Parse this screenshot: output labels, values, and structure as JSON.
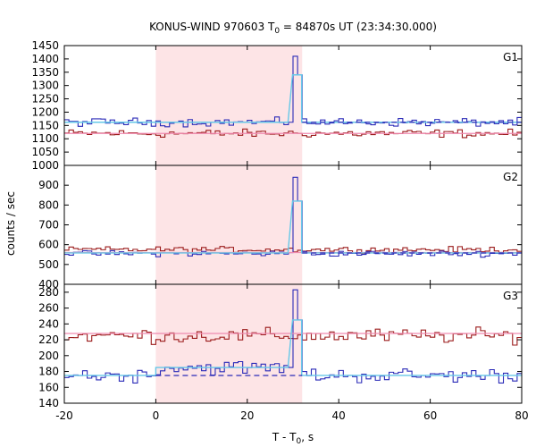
{
  "chart_data": {
    "type": "line",
    "title_prefix": "KONUS-WIND 970603 T",
    "title_sub": "0",
    "title_suffix": " = 84870s UT (23:34:30.000)",
    "xlabel_prefix": "T - T",
    "xlabel_sub": "0",
    "xlabel_suffix": ", s",
    "ylabel": "counts / sec",
    "xlim": [
      -20,
      80
    ],
    "x_ticks": [
      -20,
      0,
      20,
      40,
      60,
      80
    ],
    "highlight_interval": [
      0,
      32
    ],
    "colors": {
      "series_red": "#9b1b1b",
      "series_blue": "#2b2bb8",
      "fit_red": "#f08ab0",
      "fit_blue": "#66c8e8",
      "bg_line": "#2b2bb8",
      "highlight": "#fde4e6"
    },
    "panels": [
      {
        "label": "G1",
        "ylim": [
          1000,
          1450
        ],
        "y_ticks": [
          1000,
          1050,
          1100,
          1150,
          1200,
          1250,
          1300,
          1350,
          1400,
          1450
        ],
        "red_mean": 1120,
        "blue_mean": 1162,
        "blue_burst": [
          [
            28.9,
            1162
          ],
          [
            29.9,
            1410
          ],
          [
            30.9,
            1340
          ],
          [
            31.9,
            1175
          ],
          [
            32.9,
            1162
          ]
        ],
        "blue_fit": [
          [
            -20,
            1162
          ],
          [
            28.9,
            1162
          ],
          [
            29.9,
            1340
          ],
          [
            31.9,
            1340
          ],
          [
            31.9,
            1162
          ],
          [
            80,
            1162
          ]
        ],
        "red_fit": [
          [
            -20,
            1120
          ],
          [
            80,
            1120
          ]
        ],
        "bg_dashed": [
          [
            32,
            1162
          ],
          [
            80,
            1162
          ]
        ]
      },
      {
        "label": "G2",
        "ylim": [
          400,
          1000
        ],
        "y_ticks": [
          400,
          500,
          600,
          700,
          800,
          900
        ],
        "red_mean": 575,
        "blue_mean": 555,
        "blue_burst": [
          [
            28.9,
            560
          ],
          [
            29.9,
            940
          ],
          [
            30.9,
            820
          ],
          [
            31.9,
            565
          ],
          [
            32.9,
            555
          ]
        ],
        "blue_fit": [
          [
            -20,
            558
          ],
          [
            28.9,
            558
          ],
          [
            29.9,
            820
          ],
          [
            31.9,
            820
          ],
          [
            31.9,
            558
          ],
          [
            80,
            558
          ]
        ],
        "red_fit": [
          [
            -20,
            560
          ],
          [
            80,
            560
          ]
        ],
        "bg_dashed": [
          [
            32,
            558
          ],
          [
            80,
            558
          ]
        ]
      },
      {
        "label": "G3",
        "ylim": [
          140,
          290
        ],
        "y_ticks": [
          140,
          160,
          180,
          200,
          220,
          240,
          260,
          280
        ],
        "red_mean": 225,
        "blue_mean": 175,
        "blue_burst": [
          [
            28.9,
            185
          ],
          [
            29.9,
            283
          ],
          [
            30.9,
            245
          ],
          [
            31.9,
            180
          ],
          [
            32.9,
            175
          ]
        ],
        "blue_fit": [
          [
            -20,
            175
          ],
          [
            0,
            175
          ],
          [
            0,
            185
          ],
          [
            28.9,
            185
          ],
          [
            29.9,
            245
          ],
          [
            31.9,
            245
          ],
          [
            31.9,
            175
          ],
          [
            80,
            175
          ]
        ],
        "red_fit": [
          [
            -20,
            228
          ],
          [
            80,
            228
          ]
        ],
        "bg_dashed": [
          [
            0,
            175
          ],
          [
            32,
            175
          ]
        ]
      }
    ]
  }
}
